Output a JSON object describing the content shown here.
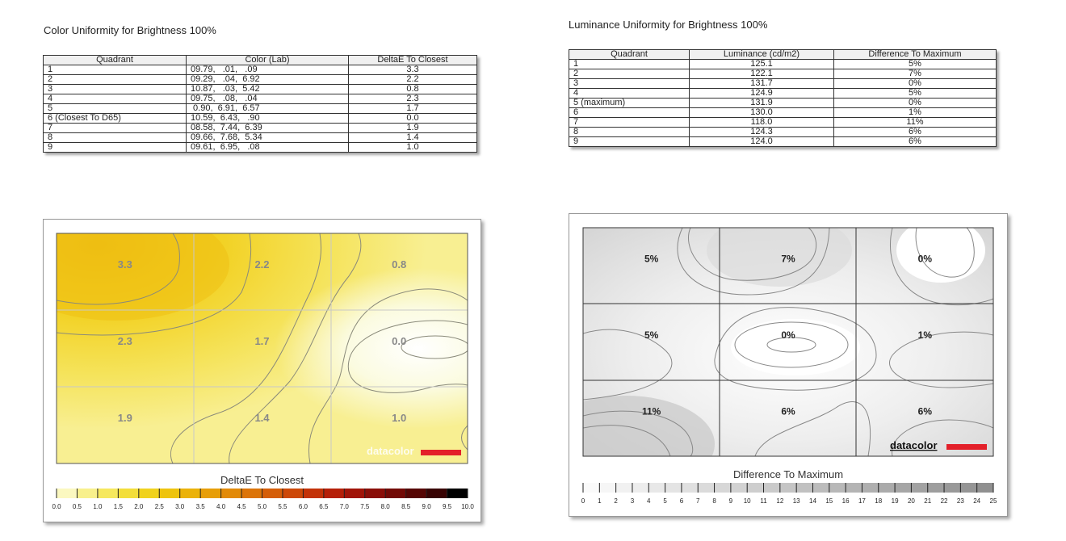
{
  "chart_data": [
    {
      "type": "table",
      "title": "Color Uniformity for Brightness 100%",
      "columns": [
        "Quadrant",
        "Color (Lab)",
        "DeltaE To Closest"
      ],
      "rows": [
        [
          "1",
          "09.79,   .01,   .09",
          "3.3"
        ],
        [
          "2",
          "09.29,   .04,  6.92",
          "2.2"
        ],
        [
          "3",
          "10.87,   .03,  5.42",
          "0.8"
        ],
        [
          "4",
          "09.75,   .08,   .04",
          "2.3"
        ],
        [
          "5",
          " 0.90,  6.91,  6.57",
          "1.7"
        ],
        [
          "6 (Closest To D65)",
          "10.59,  6.43,   .90",
          "0.0"
        ],
        [
          "7",
          "08.58,  7.44,  6.39",
          "1.9"
        ],
        [
          "8",
          "09.66,  7.68,  5.34",
          "1.4"
        ],
        [
          "9",
          "09.61,  6.95,   .08",
          "1.0"
        ]
      ]
    },
    {
      "type": "table",
      "title": "Luminance Uniformity for Brightness 100%",
      "columns": [
        "Quadrant",
        "Luminance (cd/m2)",
        "Difference To Maximum"
      ],
      "rows": [
        [
          "1",
          "125.1",
          "5%"
        ],
        [
          "2",
          "122.1",
          "7%"
        ],
        [
          "3",
          "131.7",
          "0%"
        ],
        [
          "4",
          "124.9",
          "5%"
        ],
        [
          "5 (maximum)",
          "131.9",
          "0%"
        ],
        [
          "6",
          "130.0",
          "1%"
        ],
        [
          "7",
          "118.0",
          "11%"
        ],
        [
          "8",
          "124.3",
          "6%"
        ],
        [
          "9",
          "124.0",
          "6%"
        ]
      ]
    },
    {
      "type": "heatmap",
      "title": "DeltaE To Closest",
      "grid_labels": [
        "3.3",
        "2.2",
        "0.8",
        "2.3",
        "1.7",
        "0.0",
        "1.9",
        "1.4",
        "1.0"
      ],
      "values": [
        3.3,
        2.2,
        0.8,
        2.3,
        1.7,
        0.0,
        1.9,
        1.4,
        1.0
      ],
      "scale_ticks": [
        "0.0",
        "0.5",
        "1.0",
        "1.5",
        "2.0",
        "2.5",
        "3.0",
        "3.5",
        "4.0",
        "4.5",
        "5.0",
        "5.5",
        "6.0",
        "6.5",
        "7.0",
        "7.5",
        "8.0",
        "8.5",
        "9.0",
        "9.5",
        "10.0"
      ],
      "scale_range": [
        0,
        10
      ],
      "scale_colors": [
        "#ffffff",
        "#fbf8c0",
        "#f8f08c",
        "#f6e85e",
        "#f3de3a",
        "#f0d21e",
        "#eec40e",
        "#ebb20a",
        "#e79e08",
        "#e28a08",
        "#dc7408",
        "#d55e08",
        "#cd4808",
        "#c33208",
        "#b51f08",
        "#a11408",
        "#8a0e08",
        "#720a06",
        "#560604",
        "#380303",
        "#000000"
      ],
      "logo": "datacolor"
    },
    {
      "type": "heatmap",
      "title": "Difference To Maximum",
      "grid_labels": [
        "5%",
        "7%",
        "0%",
        "5%",
        "0%",
        "1%",
        "11%",
        "6%",
        "6%"
      ],
      "values": [
        5,
        7,
        0,
        5,
        0,
        1,
        11,
        6,
        6
      ],
      "scale_ticks": [
        "0",
        "1",
        "2",
        "3",
        "4",
        "5",
        "6",
        "7",
        "8",
        "9",
        "10",
        "11",
        "12",
        "13",
        "14",
        "15",
        "16",
        "17",
        "18",
        "19",
        "20",
        "21",
        "22",
        "23",
        "24",
        "25"
      ],
      "scale_range": [
        0,
        25
      ],
      "logo": "datacolor"
    }
  ]
}
